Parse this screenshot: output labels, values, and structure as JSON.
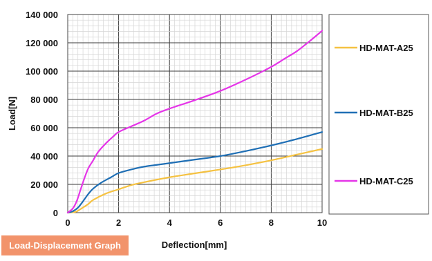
{
  "chart_data": {
    "type": "line",
    "title": "",
    "xlabel": "Deflection[mm]",
    "ylabel": "Load[N]",
    "xlim": [
      0,
      10
    ],
    "ylim": [
      0,
      140000
    ],
    "x_ticks": [
      0,
      2,
      4,
      6,
      8,
      10
    ],
    "x_tick_labels": [
      "0",
      "2",
      "4",
      "6",
      "8",
      "10"
    ],
    "y_ticks": [
      0,
      20000,
      40000,
      60000,
      80000,
      100000,
      120000,
      140000
    ],
    "y_tick_labels": [
      "0",
      "20 000",
      "40 000",
      "60 000",
      "80 000",
      "100 000",
      "120 000",
      "140 000"
    ],
    "grid": true,
    "legend_position": "right",
    "series": [
      {
        "name": "HD-MAT-A25",
        "color": "#f5c242",
        "x": [
          0,
          0.3,
          0.5,
          0.8,
          1.0,
          1.5,
          2.0,
          2.5,
          3.0,
          4.0,
          5.0,
          6.0,
          7.0,
          8.0,
          9.0,
          10.0
        ],
        "y": [
          0,
          500,
          2500,
          6000,
          9000,
          13500,
          16500,
          19500,
          21500,
          25000,
          27800,
          30500,
          33500,
          37000,
          41000,
          45000
        ]
      },
      {
        "name": "HD-MAT-B25",
        "color": "#1f6fb5",
        "x": [
          0,
          0.2,
          0.4,
          0.6,
          0.8,
          1.0,
          1.3,
          1.7,
          2.0,
          2.5,
          3.0,
          4.0,
          5.0,
          6.0,
          7.0,
          8.0,
          9.0,
          10.0
        ],
        "y": [
          0,
          1000,
          3500,
          8000,
          13000,
          17000,
          21000,
          25000,
          28000,
          30500,
          32500,
          35000,
          37500,
          40000,
          43500,
          47500,
          52000,
          57000
        ]
      },
      {
        "name": "HD-MAT-C25",
        "color": "#e535e8",
        "x": [
          0,
          0.2,
          0.35,
          0.5,
          0.65,
          0.8,
          1.0,
          1.2,
          1.5,
          1.8,
          2.0,
          2.5,
          3.0,
          3.5,
          4.0,
          5.0,
          6.0,
          7.0,
          8.0,
          8.5,
          9.0,
          9.5,
          10.0
        ],
        "y": [
          0,
          3000,
          8000,
          16000,
          24000,
          31000,
          37000,
          43000,
          49000,
          54000,
          57000,
          61000,
          65000,
          70000,
          73500,
          79500,
          86000,
          94000,
          103000,
          108500,
          114000,
          121000,
          128500
        ]
      }
    ],
    "annotations": [
      "Load-Displacement Graph"
    ]
  },
  "badge": {
    "text": "Load-Displacement Graph",
    "color": "#f2936b"
  }
}
